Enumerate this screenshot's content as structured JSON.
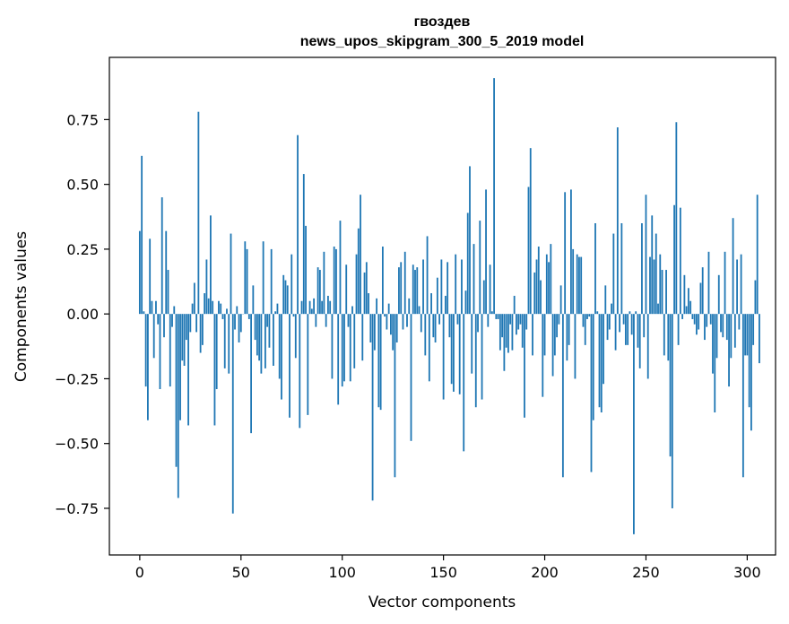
{
  "chart_data": {
    "type": "bar",
    "title_line1": "гвоздев",
    "title_line2": "news_upos_skipgram_300_5_2019 model",
    "xlabel": "Vector components",
    "ylabel": "Components values",
    "xlim": [
      -15,
      314
    ],
    "ylim": [
      -0.93,
      0.99
    ],
    "xticks": [
      0,
      50,
      100,
      150,
      200,
      250,
      300
    ],
    "xtick_labels": [
      "0",
      "50",
      "100",
      "150",
      "200",
      "250",
      "300"
    ],
    "yticks": [
      -0.75,
      -0.5,
      -0.25,
      0.0,
      0.25,
      0.5,
      0.75
    ],
    "ytick_labels": [
      "−0.75",
      "−0.50",
      "−0.25",
      "0.00",
      "0.25",
      "0.50",
      "0.75"
    ],
    "bar_color": "#1f77b4",
    "values": [
      0.32,
      0.61,
      0.01,
      -0.28,
      -0.41,
      0.29,
      0.05,
      -0.17,
      0.05,
      -0.04,
      -0.29,
      0.45,
      -0.09,
      0.32,
      0.17,
      -0.28,
      -0.05,
      0.03,
      -0.59,
      -0.71,
      -0.41,
      -0.18,
      -0.2,
      -0.1,
      -0.43,
      -0.07,
      0.04,
      0.12,
      -0.07,
      0.78,
      -0.15,
      -0.12,
      0.08,
      0.21,
      0.06,
      0.38,
      0.05,
      -0.43,
      -0.29,
      0.05,
      0.04,
      -0.02,
      -0.21,
      0.02,
      -0.23,
      0.31,
      -0.77,
      -0.06,
      0.03,
      -0.11,
      -0.07,
      0.0,
      0.28,
      0.25,
      -0.02,
      -0.46,
      0.11,
      -0.1,
      -0.16,
      -0.18,
      -0.23,
      0.28,
      -0.21,
      -0.05,
      -0.13,
      0.25,
      -0.2,
      0.01,
      0.04,
      -0.25,
      -0.33,
      0.15,
      0.13,
      0.11,
      -0.4,
      0.23,
      -0.01,
      -0.17,
      0.69,
      -0.44,
      0.05,
      0.54,
      0.34,
      -0.39,
      0.05,
      0.02,
      0.06,
      -0.05,
      0.18,
      0.17,
      0.05,
      0.24,
      -0.05,
      0.07,
      0.05,
      -0.25,
      0.26,
      0.25,
      -0.35,
      0.36,
      -0.28,
      -0.26,
      0.19,
      -0.05,
      -0.26,
      0.03,
      -0.21,
      0.23,
      0.33,
      0.46,
      -0.18,
      0.16,
      0.2,
      0.08,
      -0.11,
      -0.72,
      -0.14,
      0.06,
      -0.36,
      -0.37,
      0.26,
      -0.01,
      -0.06,
      0.04,
      -0.08,
      -0.14,
      -0.63,
      -0.11,
      0.18,
      0.2,
      -0.06,
      0.24,
      -0.05,
      0.06,
      -0.49,
      0.19,
      0.17,
      0.18,
      0.03,
      -0.07,
      0.21,
      -0.16,
      0.3,
      -0.26,
      0.08,
      -0.09,
      -0.11,
      0.14,
      -0.04,
      0.21,
      -0.33,
      0.07,
      0.2,
      -0.09,
      -0.27,
      -0.3,
      0.23,
      -0.04,
      -0.31,
      0.21,
      -0.53,
      0.09,
      0.39,
      0.57,
      -0.23,
      0.27,
      -0.36,
      -0.07,
      0.36,
      -0.33,
      0.13,
      0.48,
      -0.05,
      0.19,
      0.01,
      0.91,
      -0.02,
      -0.02,
      -0.14,
      -0.09,
      -0.22,
      -0.13,
      -0.15,
      -0.04,
      -0.14,
      0.07,
      -0.08,
      -0.06,
      -0.04,
      -0.13,
      -0.4,
      -0.06,
      0.49,
      0.64,
      -0.16,
      0.16,
      0.21,
      0.26,
      0.13,
      -0.32,
      -0.16,
      0.23,
      0.2,
      0.27,
      -0.24,
      -0.16,
      -0.09,
      -0.04,
      0.11,
      -0.63,
      0.47,
      -0.18,
      -0.12,
      0.48,
      0.25,
      -0.25,
      0.23,
      0.22,
      0.22,
      -0.05,
      -0.12,
      -0.02,
      -0.01,
      -0.61,
      -0.41,
      0.35,
      0.01,
      -0.36,
      -0.38,
      -0.27,
      0.11,
      -0.1,
      -0.06,
      0.04,
      0.31,
      -0.14,
      0.72,
      -0.07,
      0.35,
      -0.04,
      -0.12,
      -0.12,
      0.01,
      -0.08,
      -0.85,
      0.01,
      -0.13,
      -0.21,
      0.35,
      -0.09,
      0.46,
      -0.25,
      0.22,
      0.38,
      0.21,
      0.31,
      0.04,
      0.23,
      0.17,
      -0.16,
      0.17,
      -0.18,
      -0.55,
      -0.75,
      0.42,
      0.74,
      -0.12,
      0.41,
      -0.02,
      0.15,
      0.03,
      0.1,
      0.05,
      -0.02,
      -0.04,
      -0.08,
      -0.06,
      0.12,
      0.18,
      -0.1,
      -0.05,
      0.24,
      -0.04,
      -0.23,
      -0.38,
      -0.17,
      0.15,
      -0.07,
      -0.09,
      0.24,
      -0.1,
      -0.28,
      -0.17,
      0.37,
      -0.13,
      0.21,
      -0.06,
      0.23,
      -0.63,
      -0.16,
      -0.16,
      -0.36,
      -0.45,
      -0.12,
      0.13,
      0.46,
      -0.19
    ]
  }
}
